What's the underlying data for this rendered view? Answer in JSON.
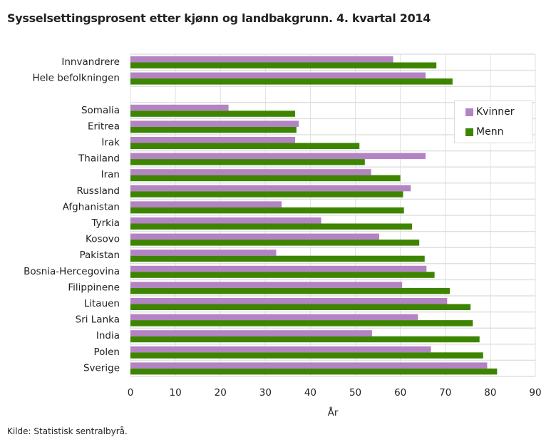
{
  "chart_data": {
    "type": "bar",
    "orientation": "horizontal",
    "title": "Sysselsettingsprosent etter kjønn og landbakgrunn. 4. kvartal 2014",
    "xlabel": "År",
    "ylabel": "",
    "xlim": [
      0,
      90
    ],
    "xticks": [
      "0",
      "10",
      "20",
      "30",
      "40",
      "50",
      "60",
      "70",
      "80",
      "90"
    ],
    "grid": true,
    "legend_position": "top-right",
    "categories": [
      "Innvandrere",
      "Hele befolkningen",
      "",
      "Somalia",
      "Eritrea",
      "Irak",
      "Thailand",
      "Iran",
      "Russland",
      "Afghanistan",
      "Tyrkia",
      "Kosovo",
      "Pakistan",
      "Bosnia-Hercegovina",
      "Filippinene",
      "Litauen",
      "Sri Lanka",
      "India",
      "Polen",
      "Sverige"
    ],
    "series": [
      {
        "name": "Kvinner",
        "color": "#b383c3",
        "values": [
          58.4,
          65.6,
          null,
          21.8,
          37.4,
          36.6,
          65.6,
          53.5,
          62.3,
          33.6,
          42.4,
          55.3,
          32.4,
          65.8,
          60.4,
          70.4,
          63.9,
          53.7,
          66.8,
          79.3
        ]
      },
      {
        "name": "Menn",
        "color": "#3d8500",
        "values": [
          68.0,
          71.6,
          null,
          36.6,
          36.9,
          50.9,
          52.1,
          60.0,
          60.6,
          60.8,
          62.6,
          64.2,
          65.4,
          67.6,
          71.0,
          75.6,
          76.1,
          77.6,
          78.4,
          81.5
        ]
      }
    ]
  },
  "source": "Kilde: Statistisk sentralbyrå."
}
